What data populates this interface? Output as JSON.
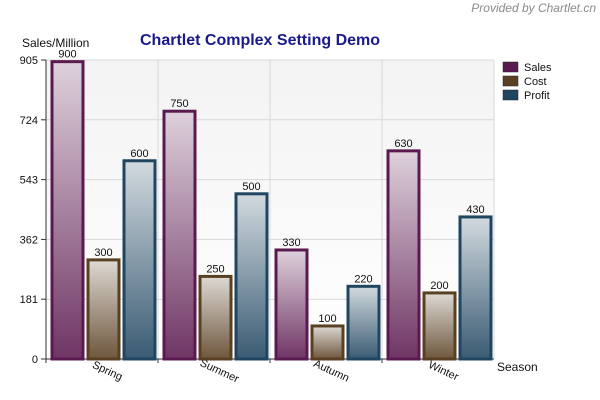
{
  "credit": "Provided by Chartlet.cn",
  "colors": {
    "Sales": "#5b1a4f",
    "Cost": "#5a4022",
    "Profit": "#1f4560",
    "title": "#1a1a8c"
  },
  "chart_data": {
    "type": "bar",
    "title": "Chartlet Complex Setting Demo",
    "xlabel": "Season",
    "ylabel": "Sales/Million",
    "categories": [
      "Spring",
      "Summer",
      "Autumn",
      "Winter"
    ],
    "series": [
      {
        "name": "Sales",
        "values": [
          900,
          750,
          330,
          630
        ]
      },
      {
        "name": "Cost",
        "values": [
          300,
          250,
          100,
          200
        ]
      },
      {
        "name": "Profit",
        "values": [
          600,
          500,
          220,
          430
        ]
      }
    ],
    "yticks": [
      0,
      181,
      362,
      543,
      724,
      905
    ],
    "ylim": [
      0,
      905
    ],
    "grid": true,
    "legend_position": "top-right"
  }
}
